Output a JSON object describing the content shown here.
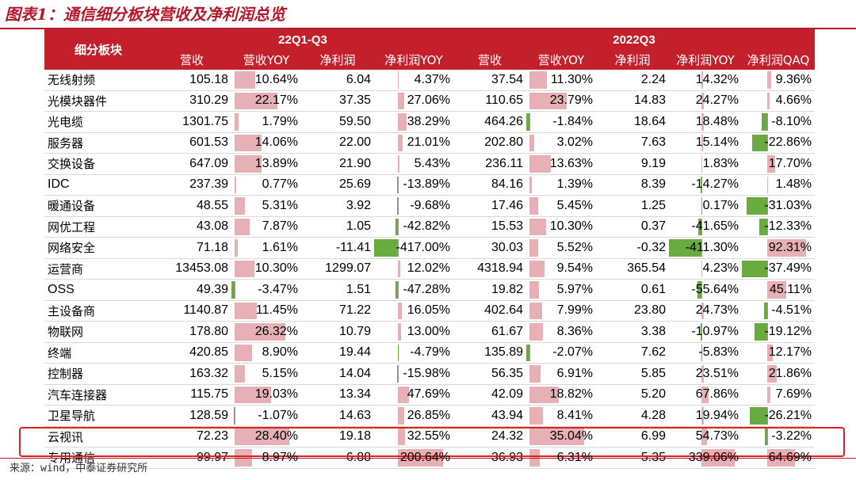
{
  "title": "图表1：通信细分板块营收及净利润总览",
  "header": {
    "segment_label": "细分板块",
    "period_a": "22Q1-Q3",
    "period_b": "2022Q3",
    "cols_a": [
      "营收",
      "营收YOY",
      "净利润",
      "净利润YOY"
    ],
    "cols_b": [
      "营收",
      "营收YOY",
      "净利润",
      "净利润YOY",
      "净利润QAQ"
    ]
  },
  "colors": {
    "header_bg": "#c4202c",
    "title": "#b5182a",
    "positive_bar": "#e6b0b4",
    "negative_bar": "#6aab3f",
    "highlight_box": "#e02020"
  },
  "rows": [
    {
      "name": "无线射频",
      "v": [
        "105.18",
        "10.64%",
        "6.04",
        "4.37%",
        "37.54",
        "11.30%",
        "2.24",
        "14.32%",
        "9.36%"
      ]
    },
    {
      "name": "光模块器件",
      "v": [
        "310.29",
        "22.17%",
        "37.35",
        "27.06%",
        "110.65",
        "23.79%",
        "14.83",
        "24.27%",
        "4.66%"
      ]
    },
    {
      "name": "光电缆",
      "v": [
        "1301.75",
        "1.79%",
        "59.50",
        "38.29%",
        "464.26",
        "-1.84%",
        "18.64",
        "18.48%",
        "-8.10%"
      ]
    },
    {
      "name": "服务器",
      "v": [
        "601.53",
        "14.06%",
        "22.00",
        "21.01%",
        "202.80",
        "3.02%",
        "7.63",
        "15.14%",
        "-22.86%"
      ]
    },
    {
      "name": "交换设备",
      "v": [
        "647.09",
        "13.89%",
        "21.90",
        "5.43%",
        "236.11",
        "13.63%",
        "9.19",
        "1.83%",
        "17.70%"
      ]
    },
    {
      "name": "IDC",
      "v": [
        "237.39",
        "0.77%",
        "25.69",
        "-13.89%",
        "84.16",
        "1.39%",
        "8.39",
        "-14.27%",
        "1.48%"
      ]
    },
    {
      "name": "暖通设备",
      "v": [
        "48.55",
        "5.31%",
        "3.92",
        "-9.68%",
        "17.46",
        "5.45%",
        "1.25",
        "0.17%",
        "-31.03%"
      ]
    },
    {
      "name": "网优工程",
      "v": [
        "43.08",
        "7.87%",
        "1.05",
        "-42.82%",
        "15.53",
        "10.30%",
        "0.37",
        "-41.65%",
        "-12.33%"
      ]
    },
    {
      "name": "网络安全",
      "v": [
        "71.18",
        "1.61%",
        "-11.41",
        "-417.00%",
        "30.03",
        "5.52%",
        "-0.32",
        "-411.30%",
        "92.31%"
      ]
    },
    {
      "name": "运营商",
      "v": [
        "13453.08",
        "10.30%",
        "1299.07",
        "12.02%",
        "4318.94",
        "9.54%",
        "365.54",
        "4.23%",
        "-37.49%"
      ]
    },
    {
      "name": "OSS",
      "v": [
        "49.39",
        "-3.47%",
        "1.51",
        "-47.28%",
        "19.82",
        "5.97%",
        "0.61",
        "-55.64%",
        "45.11%"
      ]
    },
    {
      "name": "主设备商",
      "v": [
        "1140.87",
        "11.45%",
        "71.22",
        "16.05%",
        "402.64",
        "7.99%",
        "23.80",
        "24.73%",
        "-4.51%"
      ]
    },
    {
      "name": "物联网",
      "v": [
        "178.80",
        "26.32%",
        "10.79",
        "13.00%",
        "61.67",
        "8.36%",
        "3.38",
        "-10.97%",
        "-19.12%"
      ]
    },
    {
      "name": "终端",
      "v": [
        "420.85",
        "8.90%",
        "19.44",
        "-4.79%",
        "135.89",
        "-2.07%",
        "7.62",
        "-5.83%",
        "12.17%"
      ]
    },
    {
      "name": "控制器",
      "v": [
        "163.32",
        "5.15%",
        "14.04",
        "-15.98%",
        "56.35",
        "6.91%",
        "5.85",
        "23.51%",
        "21.86%"
      ]
    },
    {
      "name": "汽车连接器",
      "v": [
        "115.75",
        "19.03%",
        "13.34",
        "47.69%",
        "42.09",
        "18.82%",
        "5.20",
        "67.86%",
        "7.69%"
      ]
    },
    {
      "name": "卫星导航",
      "v": [
        "128.59",
        "-1.07%",
        "14.63",
        "26.85%",
        "43.94",
        "8.41%",
        "4.28",
        "19.94%",
        "-26.21%"
      ]
    },
    {
      "name": "云视讯",
      "v": [
        "72.23",
        "28.40%",
        "19.18",
        "32.55%",
        "24.32",
        "35.04%",
        "6.99",
        "54.73%",
        "-3.22%"
      ]
    },
    {
      "name": "专用通信",
      "v": [
        "99.97",
        "8.97%",
        "6.88",
        "200.64%",
        "36.93",
        "6.31%",
        "5.35",
        "339.06%",
        "64.69%"
      ]
    }
  ],
  "bar_scales": {
    "col1": {
      "axis": 0.05,
      "max_pos": 28.4,
      "min_neg": -3.47
    },
    "col3": {
      "axis": 0.3,
      "max_pos": 200.64,
      "min_neg": -417.0
    },
    "col5": {
      "axis": 0.05,
      "max_pos": 35.04,
      "min_neg": -2.07
    },
    "col7": {
      "axis": 0.45,
      "max_pos": 339.06,
      "min_neg": -411.3
    },
    "col8": {
      "axis": 0.35,
      "max_pos": 92.31,
      "min_neg": -37.49
    }
  },
  "source": "来源：wind，中泰证券研究所"
}
